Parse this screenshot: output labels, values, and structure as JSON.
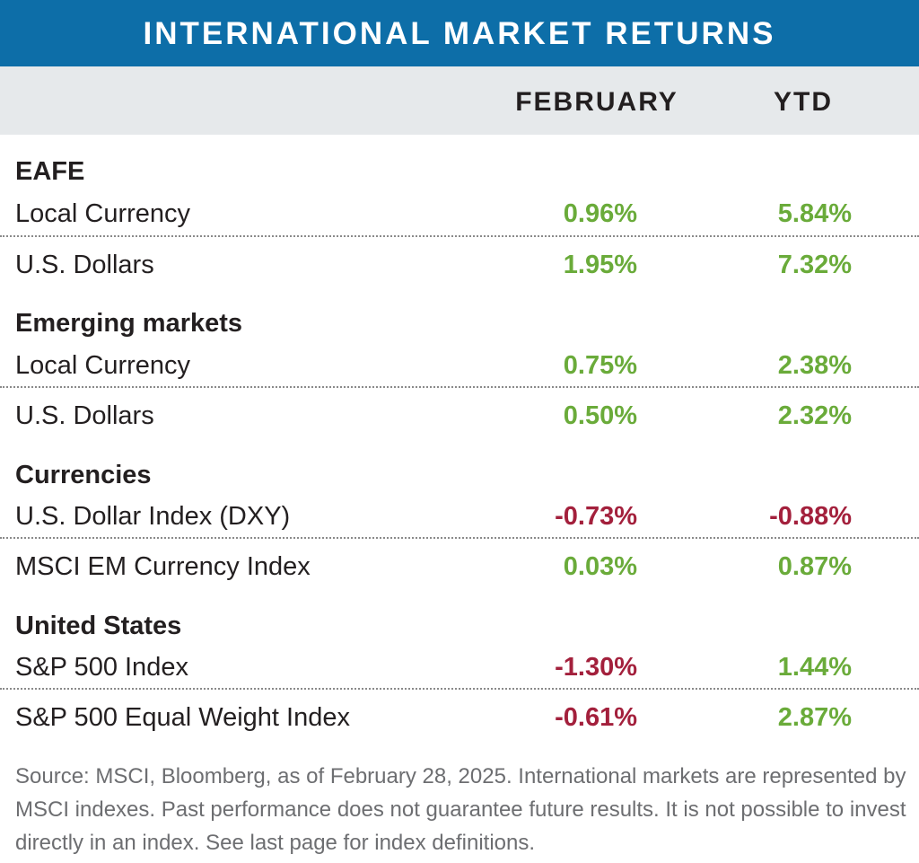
{
  "title": "INTERNATIONAL MARKET RETURNS",
  "columns": {
    "february": "FEBRUARY",
    "ytd": "YTD"
  },
  "sections": [
    {
      "title": "EAFE",
      "rows": [
        {
          "label": "Local Currency",
          "february": "0.96%",
          "ytd": "5.84%",
          "february_sign": "pos",
          "ytd_sign": "pos"
        },
        {
          "label": "U.S. Dollars",
          "february": "1.95%",
          "ytd": "7.32%",
          "february_sign": "pos",
          "ytd_sign": "pos"
        }
      ]
    },
    {
      "title": "Emerging markets",
      "rows": [
        {
          "label": "Local Currency",
          "february": "0.75%",
          "ytd": "2.38%",
          "february_sign": "pos",
          "ytd_sign": "pos"
        },
        {
          "label": "U.S. Dollars",
          "february": "0.50%",
          "ytd": "2.32%",
          "february_sign": "pos",
          "ytd_sign": "pos"
        }
      ]
    },
    {
      "title": "Currencies",
      "rows": [
        {
          "label": "U.S. Dollar Index (DXY)",
          "february": "-0.73%",
          "ytd": "-0.88%",
          "february_sign": "neg",
          "ytd_sign": "neg"
        },
        {
          "label": "MSCI EM Currency Index",
          "february": "0.03%",
          "ytd": "0.87%",
          "february_sign": "pos",
          "ytd_sign": "pos"
        }
      ]
    },
    {
      "title": "United States",
      "rows": [
        {
          "label": "S&P 500 Index",
          "february": "-1.30%",
          "ytd": "1.44%",
          "february_sign": "neg",
          "ytd_sign": "pos"
        },
        {
          "label": "S&P 500 Equal Weight Index",
          "february": "-0.61%",
          "ytd": "2.87%",
          "february_sign": "neg",
          "ytd_sign": "pos"
        }
      ]
    }
  ],
  "source_note": "Source: MSCI, Bloomberg, as of February 28, 2025. International markets are  represented by MSCI indexes. Past performance does not guarantee future results. It is not possible to invest directly in an index. See last page for index definitions.",
  "colors": {
    "header_blue": "#0d6ea8",
    "header_band_gray": "#e6e9eb",
    "positive_green": "#6aab3a",
    "negative_red": "#a3203c"
  }
}
